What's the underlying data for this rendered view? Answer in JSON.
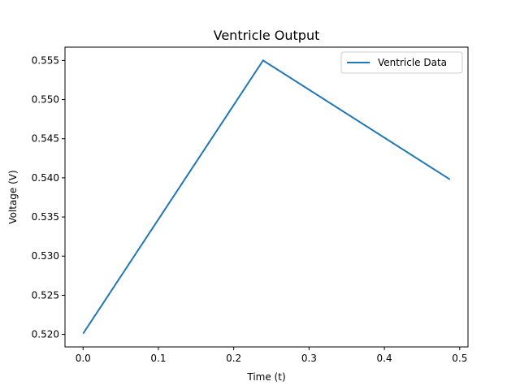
{
  "chart_data": {
    "type": "line",
    "title": "Ventricle Output",
    "xlabel": "Time (t)",
    "ylabel": "Voltage (V)",
    "xlim": [
      -0.024,
      0.511
    ],
    "ylim": [
      0.5184,
      0.5567
    ],
    "x_ticks": [
      0.0,
      0.1,
      0.2,
      0.3,
      0.4,
      0.5
    ],
    "x_tick_labels": [
      "0.0",
      "0.1",
      "0.2",
      "0.3",
      "0.4",
      "0.5"
    ],
    "y_ticks": [
      0.52,
      0.525,
      0.53,
      0.535,
      0.54,
      0.545,
      0.55,
      0.555
    ],
    "y_tick_labels": [
      "0.520",
      "0.525",
      "0.530",
      "0.535",
      "0.540",
      "0.545",
      "0.550",
      "0.555"
    ],
    "grid": false,
    "legend_position": "upper right",
    "series": [
      {
        "name": "Ventricle Data",
        "color": "#1f77b4",
        "x": [
          0.0,
          0.239,
          0.487
        ],
        "y": [
          0.5201,
          0.555,
          0.5398
        ]
      }
    ]
  }
}
